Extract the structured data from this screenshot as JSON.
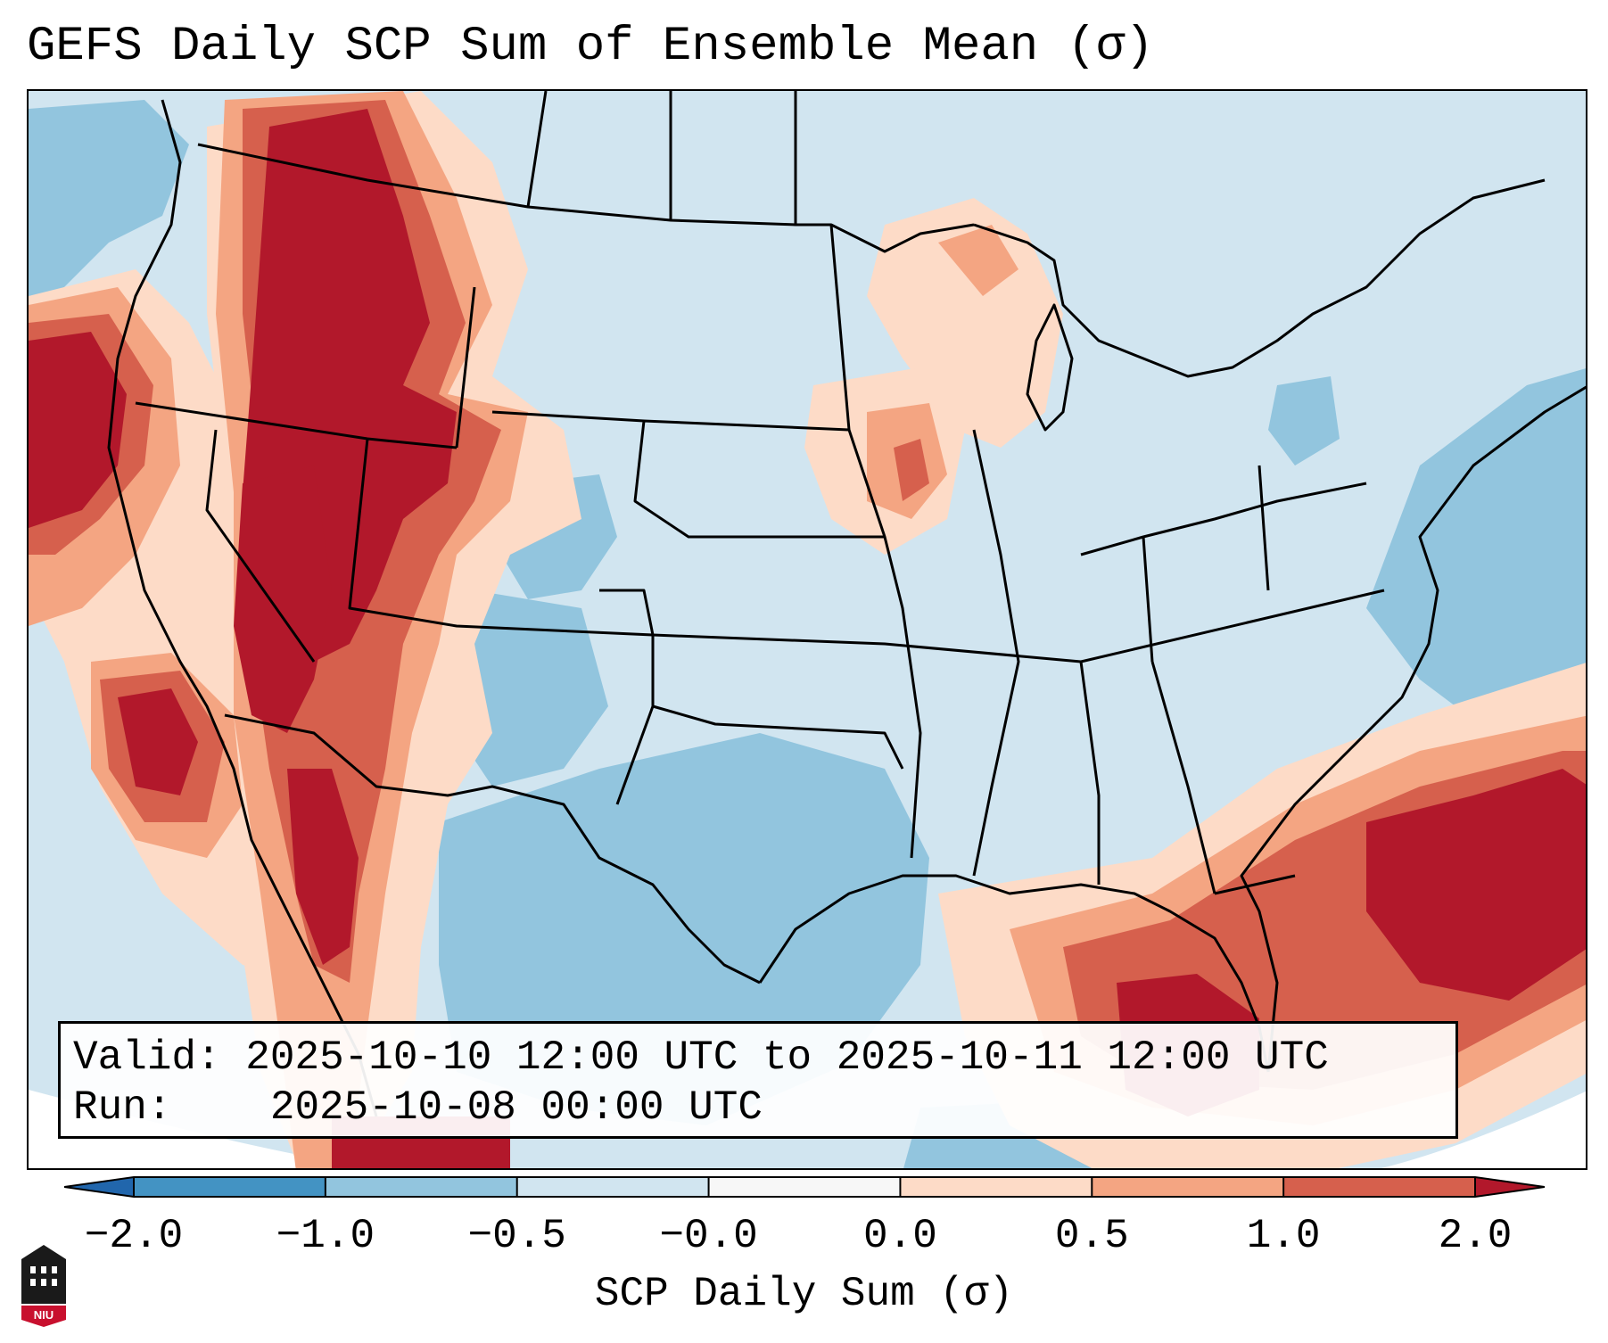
{
  "title": "GEFS Daily SCP Sum of Ensemble Mean (σ)",
  "info_box": {
    "valid_label": "Valid:",
    "valid_value": "2025-10-10 12:00 UTC to 2025-10-11 12:00 UTC",
    "run_label": "Run:",
    "run_value": "2025-10-08 00:00 UTC"
  },
  "colorbar": {
    "label": "SCP Daily Sum (σ)",
    "ticks": [
      "−2.0",
      "−1.0",
      "−0.5",
      "−0.0",
      "0.0",
      "0.5",
      "1.0",
      "2.0"
    ],
    "bins": [
      {
        "from": -2.0,
        "to": -1.0,
        "color": "#4393c3"
      },
      {
        "from": -1.0,
        "to": -0.5,
        "color": "#92c5de"
      },
      {
        "from": -0.5,
        "to": -0.0,
        "color": "#d1e5f0"
      },
      {
        "from": -0.0,
        "to": 0.0,
        "color": "#f7f7f7"
      },
      {
        "from": 0.0,
        "to": 0.5,
        "color": "#fddbc7"
      },
      {
        "from": 0.5,
        "to": 1.0,
        "color": "#f4a582"
      },
      {
        "from": 1.0,
        "to": 2.0,
        "color": "#d6604d"
      }
    ],
    "under_color": "#2166ac",
    "over_color": "#b2182b"
  },
  "colors": {
    "strong_positive": "#b2182b",
    "positive": "#d6604d",
    "weak_positive": "#f4a582",
    "slight_positive": "#fddbc7",
    "background": "#d1e5f0",
    "slight_negative": "#92c5de",
    "outline": "#000000"
  },
  "logo": {
    "text": "NIU",
    "name": "niu-logo"
  }
}
